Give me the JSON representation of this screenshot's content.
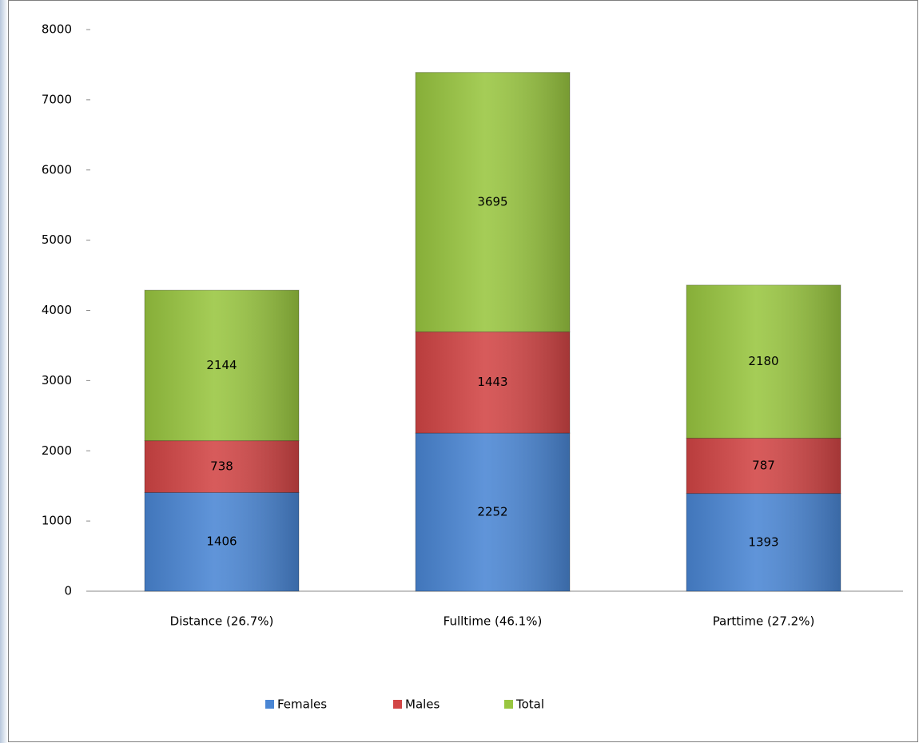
{
  "chart_data": {
    "type": "stacked_bar",
    "categories": [
      "Distance (26.7%)",
      "Fulltime  (46.1%)",
      "Parttime (27.2%)"
    ],
    "series": [
      {
        "name": "Females",
        "color": "#4a86d4",
        "values": [
          1406,
          2252,
          1393
        ]
      },
      {
        "name": "Males",
        "color": "#d24545",
        "values": [
          738,
          1443,
          787
        ]
      },
      {
        "name": "Total",
        "color": "#99c640",
        "values": [
          2144,
          3695,
          2180
        ]
      }
    ],
    "ylim": [
      0,
      8000
    ],
    "yticks": [
      0,
      1000,
      2000,
      3000,
      4000,
      5000,
      6000,
      7000,
      8000
    ],
    "legend": "bottom"
  }
}
